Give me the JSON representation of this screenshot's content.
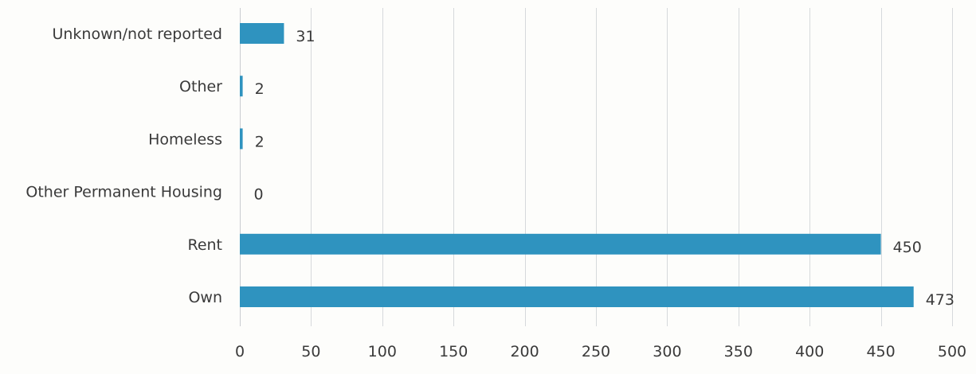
{
  "chart_data": {
    "type": "bar",
    "orientation": "horizontal",
    "categories": [
      "Unknown/not reported",
      "Other",
      "Homeless",
      "Other Permanent Housing",
      "Rent",
      "Own"
    ],
    "values": [
      31,
      2,
      2,
      0,
      450,
      473
    ],
    "data_labels": [
      "31",
      "2",
      "2",
      "0",
      "450",
      "473"
    ],
    "title": "",
    "xlabel": "",
    "ylabel": "",
    "xlim": [
      0,
      500
    ],
    "x_ticks": [
      0,
      50,
      100,
      150,
      200,
      250,
      300,
      350,
      400,
      450,
      500
    ],
    "grid": true,
    "legend": "none",
    "bar_color": "#2f93bf"
  }
}
